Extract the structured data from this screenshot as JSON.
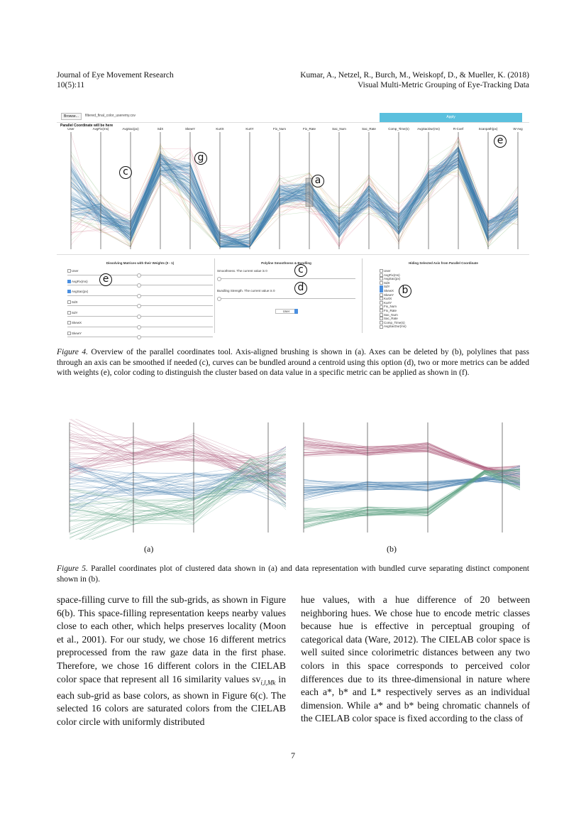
{
  "header": {
    "journal": "Journal of Eye Movement Research",
    "issue": "10(5):11",
    "authors": "Kumar, A., Netzel, R., Burch, M., Weiskopf, D., & Mueller, K. (2018)",
    "short_title": "Visual Multi-Metric Grouping of Eye-Tracking Data"
  },
  "figure4": {
    "browse_label": "Browse...",
    "file_name": "filtered_final_color_useremy.csv",
    "apply_label": "Apply",
    "plot_title": "Parallel Coordinate will be here",
    "axes": [
      "User",
      "AvgFix(ms)",
      "AvgSac(px)",
      "SdX",
      "SkewY",
      "KurtX",
      "KurtY",
      "Fix_Num",
      "Fix_Rate",
      "Sac_Num",
      "Sac_Rate",
      "Comp_Time(s)",
      "AvgSacDur(ms)",
      "R-Coef",
      "Scanpath(px)",
      "W-Avg"
    ],
    "panel_weights": {
      "title": "Dissolving Matrices with their Weights (0 - 1)",
      "items": [
        {
          "label": "User",
          "checked": false
        },
        {
          "label": "AvgFix(ms)",
          "checked": true
        },
        {
          "label": "AvgSac(px)",
          "checked": true
        },
        {
          "label": "SdX",
          "checked": false
        },
        {
          "label": "SdY",
          "checked": false
        },
        {
          "label": "SkewX",
          "checked": false
        },
        {
          "label": "SkewY",
          "checked": false
        }
      ]
    },
    "panel_smooth": {
      "title": "Polyline Smoothness & Bundling",
      "smoothness": "Smoothness. The current value is 0",
      "bundling": "Bundling Strength. The current value is 0",
      "select": "User"
    },
    "panel_hide": {
      "title": "Hiding Selected Axis from Parallel Coordinate",
      "items": [
        {
          "label": "User",
          "checked": false
        },
        {
          "label": "AvgFix(ms)",
          "checked": false
        },
        {
          "label": "AvgSac(px)",
          "checked": false
        },
        {
          "label": "SdX",
          "checked": false
        },
        {
          "label": "SdY",
          "checked": true
        },
        {
          "label": "SkewX",
          "checked": true
        },
        {
          "label": "SkewY",
          "checked": false
        },
        {
          "label": "KurtX",
          "checked": false
        },
        {
          "label": "KurtY",
          "checked": false
        },
        {
          "label": "Fix_Num",
          "checked": false
        },
        {
          "label": "Fix_Rate",
          "checked": false
        },
        {
          "label": "Sac_Num",
          "checked": false
        },
        {
          "label": "Sac_Rate",
          "checked": false
        },
        {
          "label": "Comp_Time(s)",
          "checked": false
        },
        {
          "label": "AvgSacDur(ms)",
          "checked": false
        }
      ]
    },
    "annotations": {
      "a": "a",
      "b": "b",
      "c": "c",
      "d": "d",
      "e": "e",
      "g": "g"
    }
  },
  "caption4": {
    "label": "Figure 4.",
    "text": " Overview of the parallel coordinates tool. Axis-aligned brushing is shown in (a). Axes can be deleted by (b), polylines that pass through an axis can be smoothed if needed (c), curves can be bundled around a centroid using this option (d), two or more metrics can be added with weights (e), color coding to distinguish the cluster based on data value in a specific metric can be applied as shown in (f)."
  },
  "figure5": {
    "sub_a": "(a)",
    "sub_b": "(b)"
  },
  "caption5": {
    "label": "Figure 5.",
    "text": " Parallel coordinates plot of clustered data shown in (a) and data representation with bundled curve separating distinct component shown in (b)."
  },
  "body": {
    "left": "space-filling curve to fill the sub-grids, as shown in Figure 6(b). This space-filling representation keeps nearby values close to each other, which helps preserves locality (Moon et al., 2001). For our study, we chose 16 different metrics preprocessed from the raw gaze data in the first phase. Therefore, we chose 16 different colors in the CIELAB color space that represent all 16 similarity values sv",
    "left_sub": "i,l,Mk",
    "left_end": " in each sub-grid as base colors, as shown in Figure 6(c). The selected 16 colors are saturated colors from the CIELAB color circle with uniformly distributed",
    "right": "hue values, with a hue difference of 20 between neighboring hues. We chose hue to encode metric classes because hue is effective in perceptual grouping of categorical data (Ware, 2012). The CIELAB color space is well suited since colorimetric distances between any two colors in this space corresponds to perceived color differences due to its three-dimensional in nature where each a*, b* and L* respectively serves as an individual dimension. While a* and b* being chromatic channels of the CIELAB color space is fixed according to the class of"
  },
  "page_number": "7"
}
